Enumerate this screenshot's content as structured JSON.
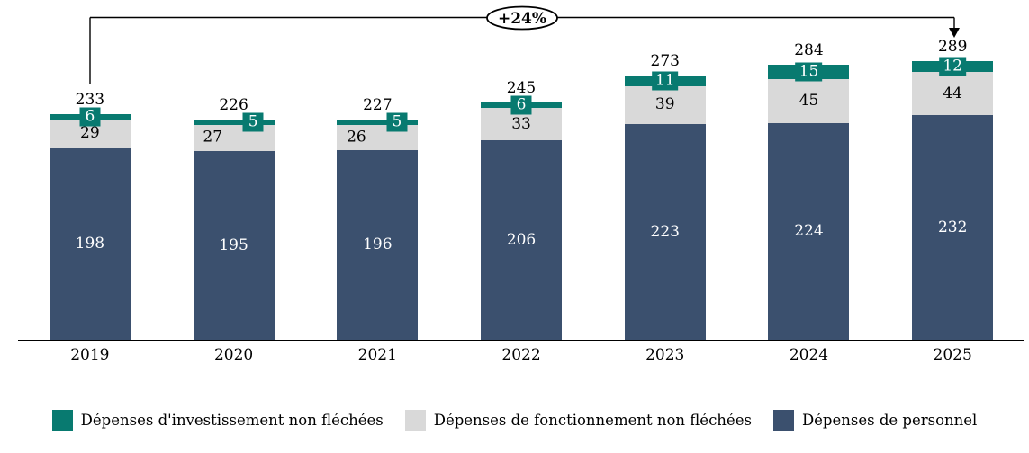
{
  "chart_data": {
    "type": "bar",
    "stacked": true,
    "title": "",
    "categories": [
      "2019",
      "2020",
      "2021",
      "2022",
      "2023",
      "2024",
      "2025"
    ],
    "series": [
      {
        "name": "Dépenses de personnel",
        "color": "#3B506E",
        "label_color": "#FFFFFF",
        "values": [
          198,
          195,
          196,
          206,
          223,
          224,
          232
        ]
      },
      {
        "name": "Dépenses de fonctionnement non fléchées",
        "color": "#D9D9D9",
        "label_color": "#000000",
        "values": [
          29,
          27,
          26,
          33,
          39,
          45,
          44
        ]
      },
      {
        "name": "Dépenses d'investissement non fléchées",
        "color": "#087A70",
        "label_color": "#FFFFFF",
        "values": [
          6,
          5,
          5,
          6,
          11,
          15,
          12
        ]
      }
    ],
    "totals": [
      233,
      226,
      227,
      245,
      273,
      284,
      289
    ],
    "annotation": {
      "label": "+24%",
      "from_category": "2019",
      "to_category": "2025"
    },
    "ylim": [
      0,
      350
    ],
    "grid": false,
    "legend_position": "bottom"
  },
  "legend": {
    "items": [
      {
        "label": "Dépenses d'investissement non fléchées",
        "color": "#087A70"
      },
      {
        "label": "Dépenses de fonctionnement non fléchées",
        "color": "#D9D9D9"
      },
      {
        "label": "Dépenses de personnel",
        "color": "#3B506E"
      }
    ]
  }
}
